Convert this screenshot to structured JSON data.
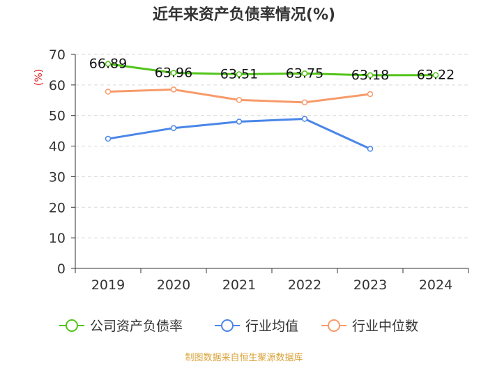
{
  "chart_data": {
    "type": "line",
    "title": "近年来资产负债率情况(%)",
    "y_unit": "(%)",
    "categories": [
      "2019",
      "2020",
      "2021",
      "2022",
      "2023",
      "2024"
    ],
    "ylim": [
      0,
      70
    ],
    "yticks": [
      0,
      10,
      20,
      30,
      40,
      50,
      60,
      70
    ],
    "grid": true,
    "legend_position": "bottom",
    "series": [
      {
        "name": "公司资产负债率",
        "color": "#52c41a",
        "values": [
          66.89,
          63.96,
          63.51,
          63.75,
          63.18,
          63.22
        ],
        "labels": [
          "66.89",
          "63.96",
          "63.51",
          "63.75",
          "63.18",
          "63.22"
        ]
      },
      {
        "name": "行业均值",
        "color": "#4a86e8",
        "values": [
          42.4,
          45.9,
          48.0,
          48.9,
          39.1,
          null
        ]
      },
      {
        "name": "行业中位数",
        "color": "#f79a6a",
        "values": [
          57.8,
          58.5,
          55.1,
          54.3,
          57.0,
          null
        ]
      }
    ],
    "source": "制图数据来自恒生聚源数据库"
  }
}
